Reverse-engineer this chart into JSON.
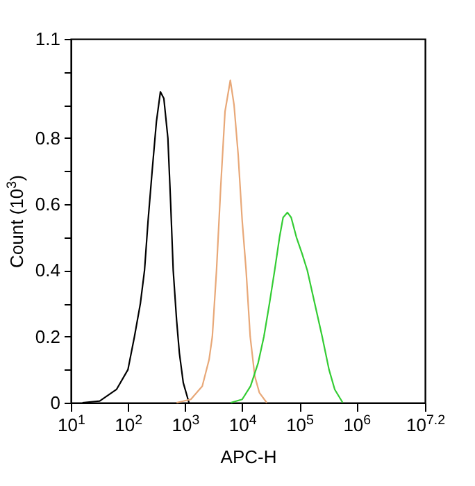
{
  "chart_data": {
    "type": "line",
    "xlabel": "APC-H",
    "ylabel": "Count (10$^{3}$)",
    "log": "x",
    "grid": false,
    "legend": false,
    "marker": "none",
    "line_style": "solid",
    "xlim": [
      10,
      15848932
    ],
    "xticks": [
      {
        "value": 10,
        "label": "10$^{1}$"
      },
      {
        "value": 100,
        "label": "10$^{2}$"
      },
      {
        "value": 1000,
        "label": "10$^{3}$"
      },
      {
        "value": 10000,
        "label": "10$^{4}$"
      },
      {
        "value": 100000,
        "label": "10$^{5}$"
      },
      {
        "value": 1000000,
        "label": "10$^{6}$"
      },
      {
        "value": 15848932,
        "label": "10$^{7.2}$"
      }
    ],
    "ylim": [
      0,
      1.1
    ],
    "yticks": [
      0,
      {
        "value": 0.1,
        "label": null
      },
      0.2,
      {
        "value": 0.3,
        "label": null
      },
      0.4,
      {
        "value": 0.5,
        "label": null
      },
      0.6,
      {
        "value": 0.7,
        "label": null
      },
      0.8,
      {
        "value": 0.9,
        "label": null
      },
      {
        "value": 1,
        "label": null
      },
      1.1
    ],
    "series": [
      {
        "color": "#000000",
        "x": [
          16,
          32,
          63,
          100,
          130,
          165,
          195,
          225,
          265,
          315,
          370,
          425,
          500,
          560,
          620,
          710,
          795,
          930,
          1170
        ],
        "values": [
          0,
          0.005,
          0.04,
          0.1,
          0.2,
          0.3,
          0.4,
          0.55,
          0.7,
          0.85,
          0.94,
          0.92,
          0.8,
          0.6,
          0.4,
          0.25,
          0.15,
          0.06,
          0
        ]
      },
      {
        "color": "#e8a878",
        "x": [
          710,
          1260,
          2000,
          2630,
          3000,
          3550,
          4200,
          5000,
          6200,
          7200,
          8500,
          10000,
          11700,
          13800,
          16600,
          20000,
          26900
        ],
        "values": [
          0,
          0.01,
          0.05,
          0.13,
          0.2,
          0.4,
          0.65,
          0.88,
          0.975,
          0.9,
          0.75,
          0.55,
          0.4,
          0.2,
          0.08,
          0.03,
          0
        ]
      },
      {
        "color": "#33cc33",
        "x": [
          6300,
          10000,
          14000,
          19000,
          24000,
          30000,
          37000,
          45000,
          52000,
          62000,
          72000,
          89000,
          112000,
          138000,
          186000,
          251000,
          331000,
          417000,
          575000
        ],
        "values": [
          0,
          0.01,
          0.05,
          0.12,
          0.2,
          0.3,
          0.4,
          0.5,
          0.56,
          0.575,
          0.56,
          0.5,
          0.45,
          0.4,
          0.3,
          0.2,
          0.1,
          0.04,
          0
        ]
      }
    ]
  }
}
